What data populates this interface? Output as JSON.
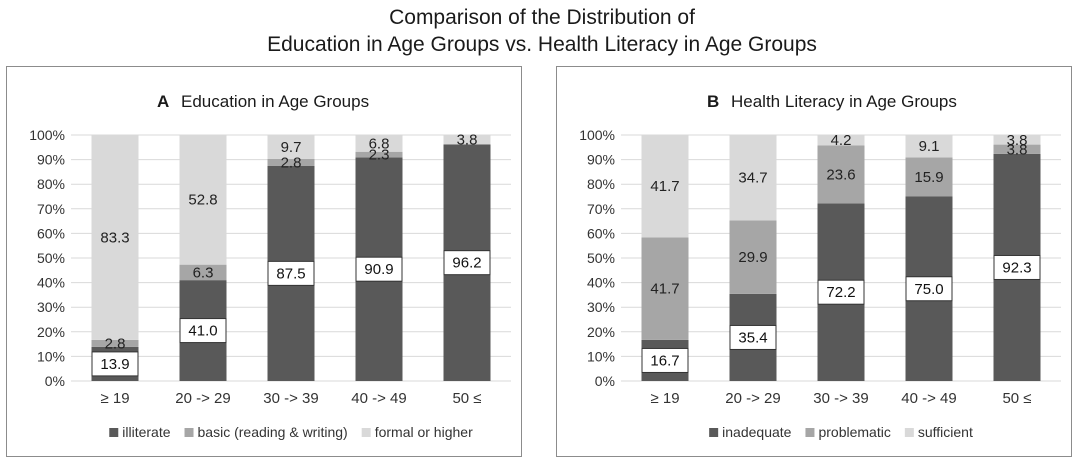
{
  "page_title_line1": "Comparison of the Distribution of",
  "page_title_line2": "Education in Age Groups vs. Health Literacy in Age Groups",
  "colors": {
    "dark": "#595959",
    "medium": "#a6a6a6",
    "light": "#d9d9d9"
  },
  "chart_data": [
    {
      "type": "bar",
      "stacked": true,
      "panel_letter": "A",
      "title": "Education in Age Groups",
      "categories": [
        "≥ 19",
        "20 -> 29",
        "30 -> 39",
        "40 -> 49",
        "50 ≤"
      ],
      "ylim": [
        0,
        100
      ],
      "yticks": [
        "0%",
        "10%",
        "20%",
        "30%",
        "40%",
        "50%",
        "60%",
        "70%",
        "80%",
        "90%",
        "100%"
      ],
      "grid": true,
      "legend_position": "bottom",
      "series": [
        {
          "name": "illiterate",
          "color": "dark",
          "values": [
            13.9,
            41.0,
            87.5,
            90.9,
            96.2
          ],
          "labels": [
            "13.9",
            "41.0",
            "87.5",
            "90.9",
            "96.2"
          ],
          "boxed": true
        },
        {
          "name": "basic (reading & writing)",
          "color": "medium",
          "values": [
            2.8,
            6.3,
            2.8,
            2.3,
            0
          ],
          "labels": [
            "2.8",
            "6.3",
            "2.8",
            "2.3",
            ""
          ]
        },
        {
          "name": "formal or higher",
          "color": "light",
          "values": [
            83.3,
            52.8,
            9.7,
            6.8,
            3.8
          ],
          "labels": [
            "83.3",
            "52.8",
            "9.7",
            "6.8",
            "3.8"
          ]
        }
      ]
    },
    {
      "type": "bar",
      "stacked": true,
      "panel_letter": "B",
      "title": "Health Literacy in Age Groups",
      "categories": [
        "≥ 19",
        "20 -> 29",
        "30 -> 39",
        "40 -> 49",
        "50 ≤"
      ],
      "ylim": [
        0,
        100
      ],
      "yticks": [
        "0%",
        "10%",
        "20%",
        "30%",
        "40%",
        "50%",
        "60%",
        "70%",
        "80%",
        "90%",
        "100%"
      ],
      "grid": true,
      "legend_position": "bottom",
      "series": [
        {
          "name": "inadequate",
          "color": "dark",
          "values": [
            16.7,
            35.4,
            72.2,
            75.0,
            92.3
          ],
          "labels": [
            "16.7",
            "35.4",
            "72.2",
            "75.0",
            "92.3"
          ],
          "boxed": true
        },
        {
          "name": "problematic",
          "color": "medium",
          "values": [
            41.7,
            29.9,
            23.6,
            15.9,
            3.8
          ],
          "labels": [
            "41.7",
            "29.9",
            "23.6",
            "15.9",
            "3.8"
          ]
        },
        {
          "name": "sufficient",
          "color": "light",
          "values": [
            41.7,
            34.7,
            4.2,
            9.1,
            3.8
          ],
          "labels": [
            "41.7",
            "34.7",
            "4.2",
            "9.1",
            "3.8"
          ]
        }
      ]
    }
  ]
}
